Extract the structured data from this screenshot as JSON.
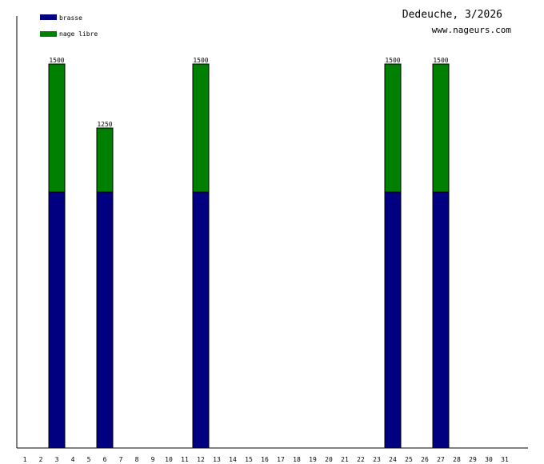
{
  "header": {
    "title": "Dedeuche, 3/2026",
    "site": "www.nageurs.com"
  },
  "legend": [
    {
      "label": "brasse",
      "color": "#000080"
    },
    {
      "label": "nage libre",
      "color": "#008000"
    }
  ],
  "chart_data": {
    "type": "bar",
    "stacked": true,
    "categories": [
      "1",
      "2",
      "3",
      "4",
      "5",
      "6",
      "7",
      "8",
      "9",
      "10",
      "11",
      "12",
      "13",
      "14",
      "15",
      "16",
      "17",
      "18",
      "19",
      "20",
      "21",
      "22",
      "23",
      "24",
      "25",
      "26",
      "27",
      "28",
      "29",
      "30",
      "31"
    ],
    "series": [
      {
        "name": "brasse",
        "color": "#000080",
        "values": [
          0,
          0,
          1000,
          0,
          0,
          1000,
          0,
          0,
          0,
          0,
          0,
          1000,
          0,
          0,
          0,
          0,
          0,
          0,
          0,
          0,
          0,
          0,
          0,
          1000,
          0,
          0,
          1000,
          0,
          0,
          0,
          0
        ]
      },
      {
        "name": "nage libre",
        "color": "#008000",
        "values": [
          0,
          0,
          500,
          0,
          0,
          250,
          0,
          0,
          0,
          0,
          0,
          500,
          0,
          0,
          0,
          0,
          0,
          0,
          0,
          0,
          0,
          0,
          0,
          500,
          0,
          0,
          500,
          0,
          0,
          0,
          0
        ]
      }
    ],
    "totals": [
      null,
      null,
      "1500",
      null,
      null,
      "1250",
      null,
      null,
      null,
      null,
      null,
      "1500",
      null,
      null,
      null,
      null,
      null,
      null,
      null,
      null,
      null,
      null,
      null,
      "1500",
      null,
      null,
      "1500",
      null,
      null,
      null,
      null
    ],
    "ylim": [
      0,
      1500
    ],
    "grid": false,
    "legend_position": "top-left"
  }
}
